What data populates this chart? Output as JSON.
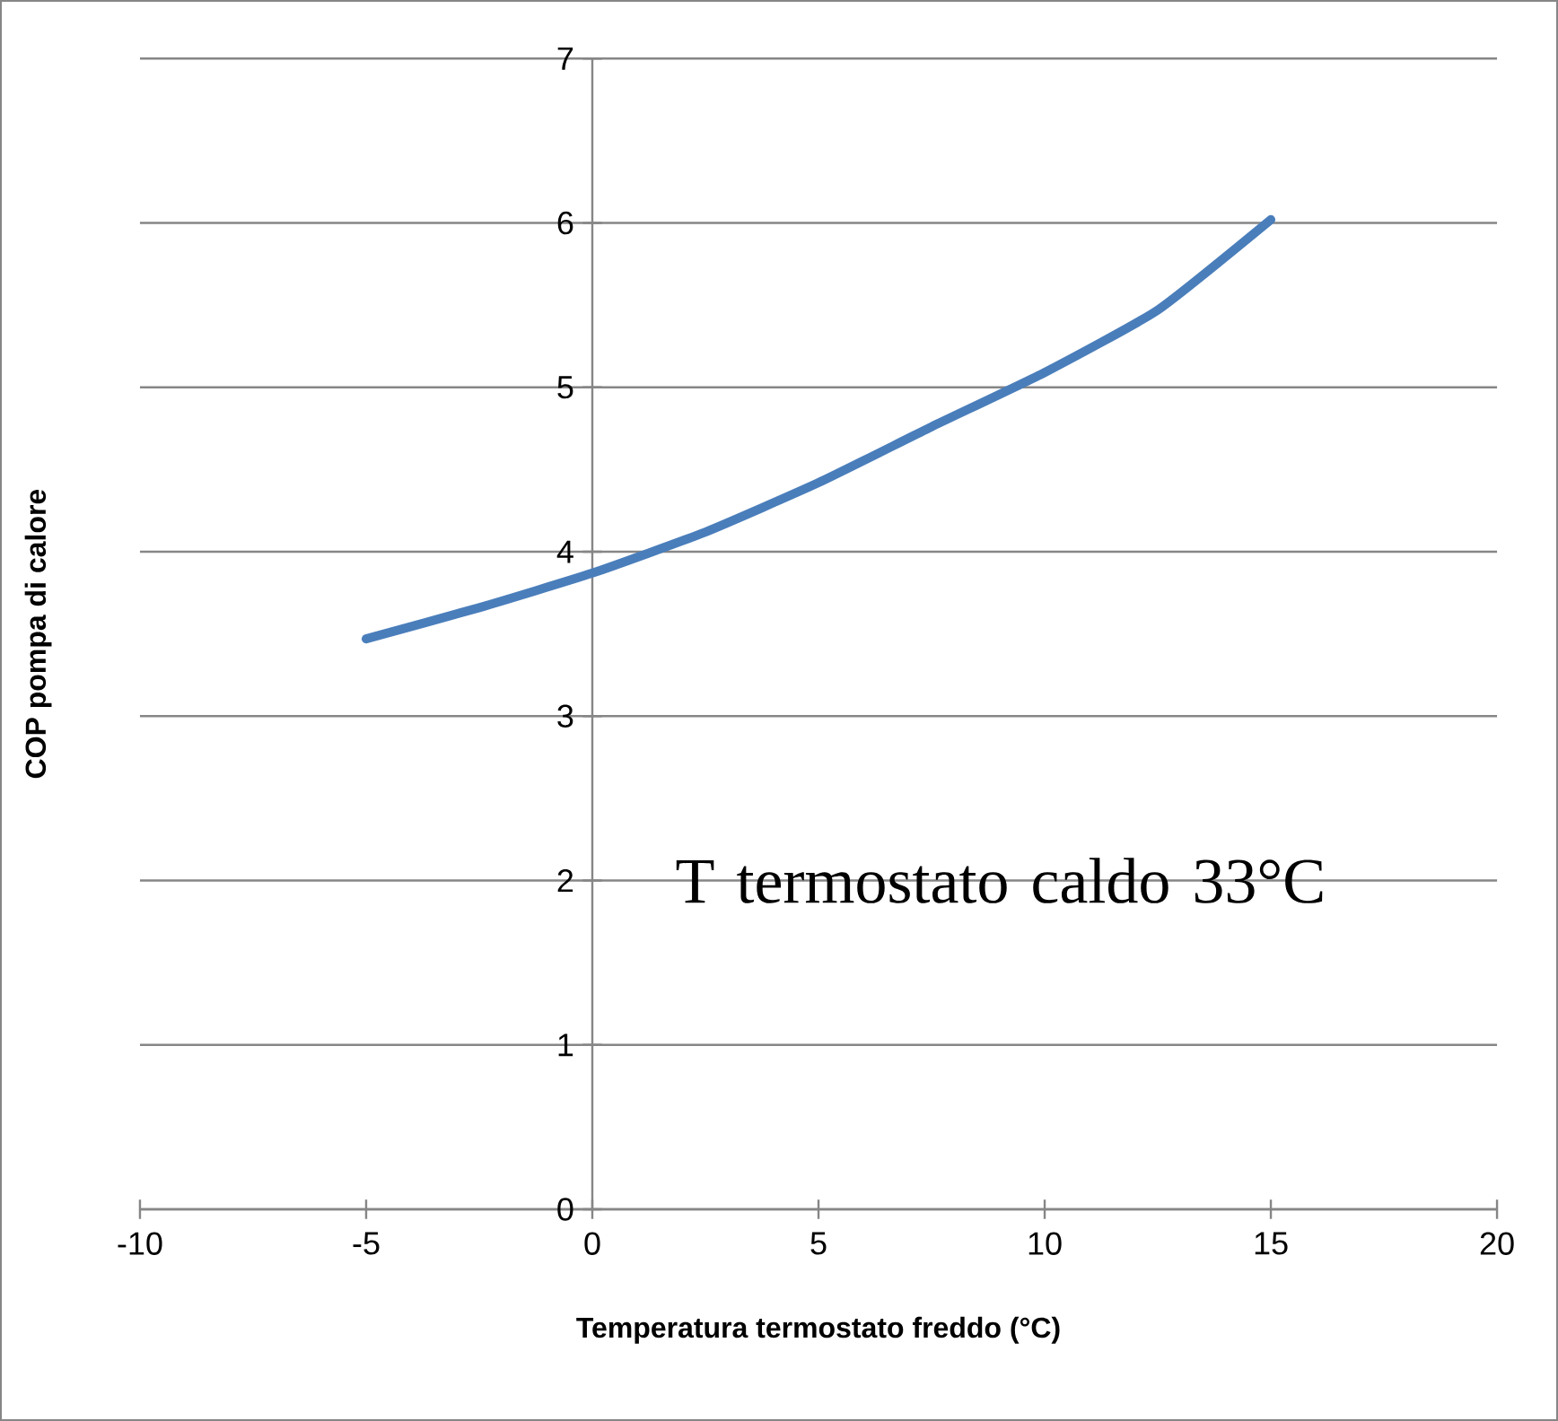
{
  "chart_data": {
    "type": "line",
    "xlabel": "Temperatura termostato freddo (°C)",
    "ylabel": "COP pompa di calore",
    "annotations": [
      "T termostato caldo 33°C"
    ],
    "x": [
      -5,
      -2.5,
      0,
      2.5,
      5,
      7.5,
      10,
      12.5,
      15
    ],
    "series": [
      {
        "color": "#4a7ebb",
        "values": [
          3.47,
          3.66,
          3.87,
          4.12,
          4.42,
          4.76,
          5.09,
          5.47,
          6.02
        ]
      }
    ],
    "xlim": [
      -10,
      20
    ],
    "xticks": [
      -10,
      -5,
      0,
      5,
      10,
      15,
      20
    ],
    "ylim": [
      0,
      7
    ],
    "yticks": [
      0,
      1,
      2,
      3,
      4,
      5,
      6,
      7
    ],
    "grid": "y",
    "marker": "none",
    "line_style": "solid"
  }
}
